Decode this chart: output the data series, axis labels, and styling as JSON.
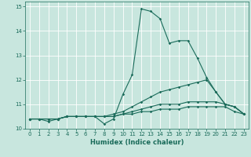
{
  "xlabel": "Humidex (Indice chaleur)",
  "xlim": [
    -0.5,
    23.5
  ],
  "ylim": [
    10,
    15.2
  ],
  "yticks": [
    10,
    11,
    12,
    13,
    14,
    15
  ],
  "xticks": [
    0,
    1,
    2,
    3,
    4,
    5,
    6,
    7,
    8,
    9,
    10,
    11,
    12,
    13,
    14,
    15,
    16,
    17,
    18,
    19,
    20,
    21,
    22,
    23
  ],
  "bg_color": "#c8e6de",
  "grid_color": "#ffffff",
  "line_color": "#1a6b5a",
  "line1_y": [
    10.4,
    10.4,
    10.3,
    10.4,
    10.5,
    10.5,
    10.5,
    10.5,
    10.2,
    10.4,
    11.4,
    12.2,
    14.9,
    14.8,
    14.5,
    13.5,
    13.6,
    13.6,
    12.9,
    12.1,
    11.5,
    11.0,
    10.9,
    10.6
  ],
  "line2_y": [
    10.4,
    10.4,
    10.4,
    10.4,
    10.5,
    10.5,
    10.5,
    10.5,
    10.5,
    10.6,
    10.7,
    10.9,
    11.1,
    11.3,
    11.5,
    11.6,
    11.7,
    11.8,
    11.9,
    12.0,
    11.5,
    11.0,
    10.9,
    10.6
  ],
  "line3_y": [
    10.4,
    10.4,
    10.4,
    10.4,
    10.5,
    10.5,
    10.5,
    10.5,
    10.5,
    10.5,
    10.6,
    10.7,
    10.8,
    10.9,
    11.0,
    11.0,
    11.0,
    11.1,
    11.1,
    11.1,
    11.1,
    11.0,
    10.9,
    10.6
  ],
  "line4_y": [
    10.4,
    10.4,
    10.4,
    10.4,
    10.5,
    10.5,
    10.5,
    10.5,
    10.5,
    10.5,
    10.6,
    10.6,
    10.7,
    10.7,
    10.8,
    10.8,
    10.8,
    10.9,
    10.9,
    10.9,
    10.9,
    10.9,
    10.7,
    10.6
  ]
}
